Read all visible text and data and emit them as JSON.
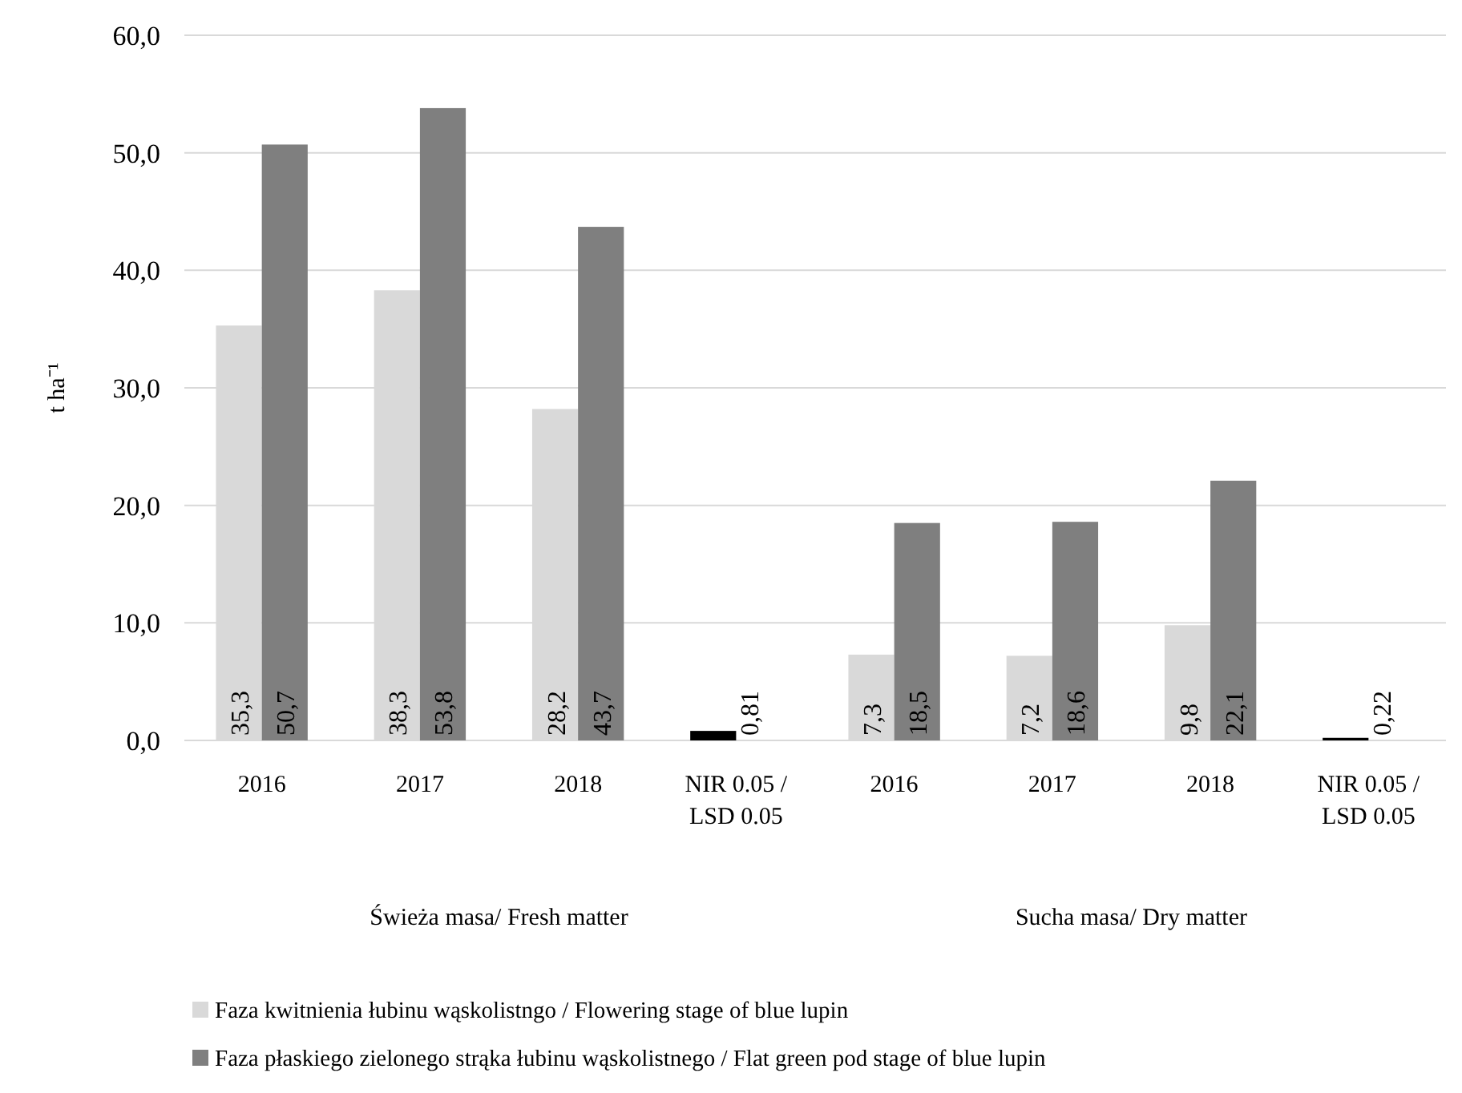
{
  "chart_data": {
    "type": "bar",
    "ylabel": "t ha⁻¹",
    "categories": [
      "2016",
      "2017",
      "2018",
      "NIR 0.05 / LSD 0.05",
      "2016",
      "2017",
      "2018",
      "NIR 0.05 / LSD 0.05"
    ],
    "series": [
      {
        "name": "Faza kwitnienia łubinu wąskolistngo / Flowering stage of blue lupin",
        "color": "#d9d9d9",
        "colors": [
          "#d9d9d9",
          "#d9d9d9",
          "#d9d9d9",
          "#000000",
          "#d9d9d9",
          "#d9d9d9",
          "#d9d9d9",
          "#000000"
        ],
        "values": [
          35.3,
          38.3,
          28.2,
          0.81,
          7.3,
          7.2,
          9.8,
          0.22
        ],
        "value_labels": [
          "35,3",
          "38,3",
          "28,2",
          "0,81",
          "7,3",
          "7,2",
          "9,8",
          "0,22"
        ]
      },
      {
        "name": "Faza płaskiego zielonego strąka łubinu wąskolistnego / Flat green pod stage of blue lupin",
        "color": "#7f7f7f",
        "values": [
          50.7,
          53.8,
          43.7,
          null,
          18.5,
          18.6,
          22.1,
          null
        ],
        "value_labels": [
          "50,7",
          "53,8",
          "43,7",
          null,
          "18,5",
          "18,6",
          "22,1",
          null
        ]
      }
    ],
    "ylim": [
      0,
      60
    ],
    "yticks": [
      {
        "value": 0,
        "label": "0,0"
      },
      {
        "value": 10,
        "label": "10,0"
      },
      {
        "value": 20,
        "label": "20,0"
      },
      {
        "value": 30,
        "label": "30,0"
      },
      {
        "value": 40,
        "label": "40,0"
      },
      {
        "value": 50,
        "label": "50,0"
      },
      {
        "value": 60,
        "label": "60,0"
      }
    ],
    "grid": "y",
    "legend": "bottom",
    "annotations": [
      "Świeża masa/ Fresh matter",
      "Sucha masa/ Dry matter"
    ]
  }
}
